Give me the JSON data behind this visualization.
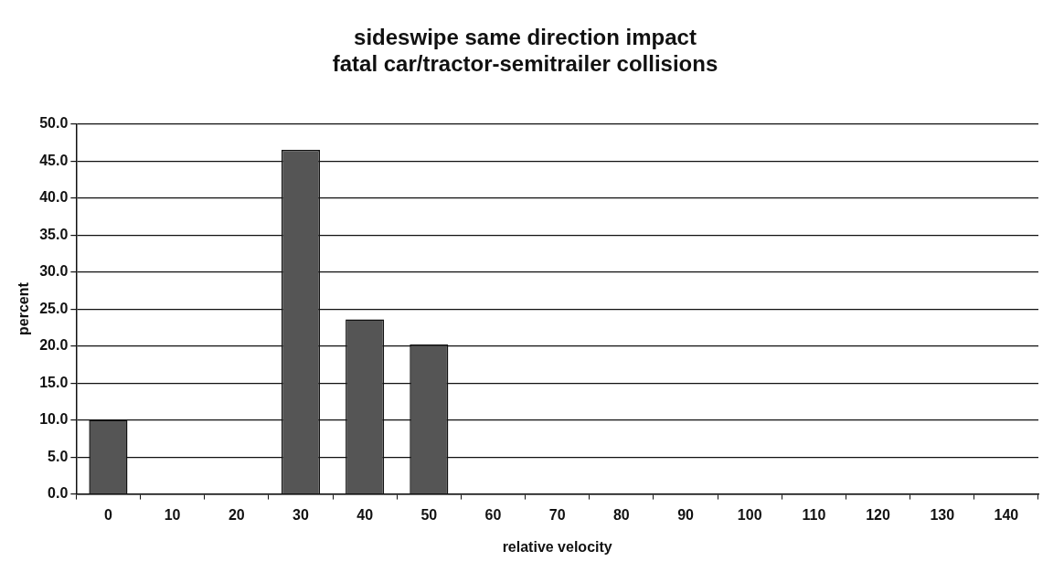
{
  "chart_data": {
    "type": "bar",
    "title": "sideswipe same direction impact\nfatal car/tractor-semitrailer collisions",
    "xlabel": "relative velocity",
    "ylabel": "percent",
    "categories": [
      "0",
      "10",
      "20",
      "30",
      "40",
      "50",
      "60",
      "70",
      "80",
      "90",
      "100",
      "110",
      "120",
      "130",
      "140"
    ],
    "values": [
      10.0,
      0,
      0,
      46.5,
      23.6,
      20.2,
      0,
      0,
      0,
      0,
      0,
      0,
      0,
      0,
      0
    ],
    "color": "#555555",
    "ylim": [
      0,
      50
    ],
    "yticks": [
      {
        "value": 0,
        "label": "0.0"
      },
      {
        "value": 5,
        "label": "5.0"
      },
      {
        "value": 10,
        "label": "10.0"
      },
      {
        "value": 15,
        "label": "15.0"
      },
      {
        "value": 20,
        "label": "20.0"
      },
      {
        "value": 25,
        "label": "25.0"
      },
      {
        "value": 30,
        "label": "30.0"
      },
      {
        "value": 35,
        "label": "35.0"
      },
      {
        "value": 40,
        "label": "40.0"
      },
      {
        "value": 45,
        "label": "45.0"
      },
      {
        "value": 50,
        "label": "50.0"
      }
    ],
    "grid": "y",
    "legend": false
  }
}
